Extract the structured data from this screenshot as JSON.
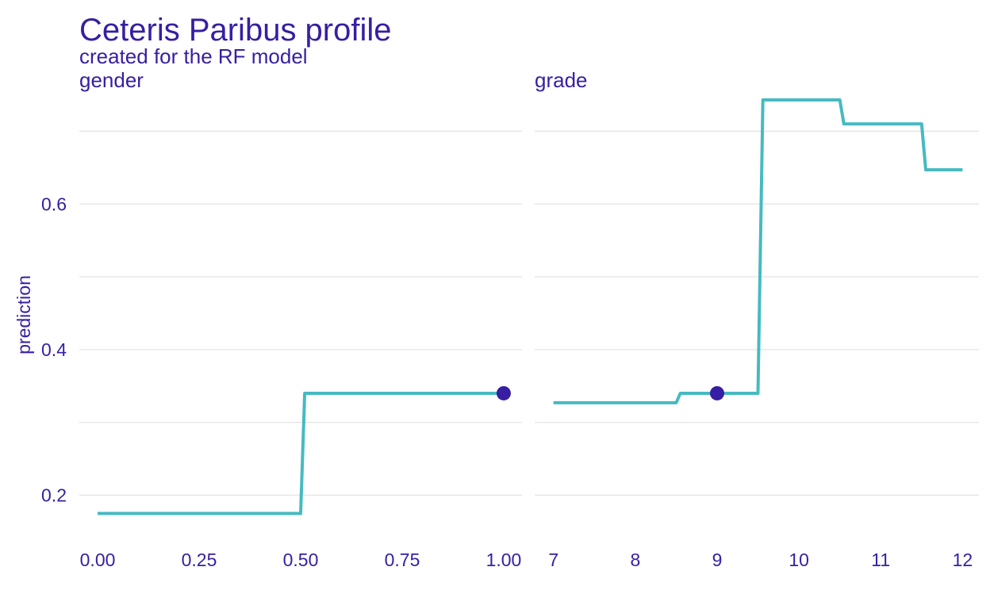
{
  "chart_data": {
    "type": "line",
    "title": "Ceteris Paribus profile",
    "subtitle": "created for the RF model",
    "ylabel": "prediction",
    "xlabel": "",
    "ylim": [
      0.145,
      0.755
    ],
    "yticks": [
      0.2,
      0.4,
      0.6
    ],
    "ytick_labels": [
      "0.2",
      "0.4",
      "0.6"
    ],
    "minor_yticks": [
      0.3,
      0.5,
      0.7
    ],
    "grid": true,
    "colors": {
      "text": "#371ea3",
      "line": "#46bac2",
      "point": "#371ea3",
      "grid": "#e6e6e6"
    },
    "panels": [
      {
        "strip": "gender",
        "xlim": [
          -0.045,
          1.045
        ],
        "xticks": [
          0.0,
          0.25,
          0.5,
          0.75,
          1.0
        ],
        "xtick_labels": [
          "0.00",
          "0.25",
          "0.50",
          "0.75",
          "1.00"
        ],
        "series": [
          {
            "x": [
              0.0,
              0.5,
              0.51,
              1.0
            ],
            "y": [
              0.175,
              0.175,
              0.34,
              0.34
            ]
          }
        ],
        "observation": {
          "x": 1.0,
          "y": 0.34
        }
      },
      {
        "strip": "grade",
        "xlim": [
          6.77,
          12.2
        ],
        "xticks": [
          7,
          8,
          9,
          10,
          11,
          12
        ],
        "xtick_labels": [
          "7",
          "8",
          "9",
          "10",
          "11",
          "12"
        ],
        "series": [
          {
            "x": [
              7.0,
              8.5,
              8.55,
              9.5,
              9.56,
              10.5,
              10.55,
              11.5,
              11.55,
              12.0
            ],
            "y": [
              0.327,
              0.327,
              0.34,
              0.34,
              0.743,
              0.743,
              0.71,
              0.71,
              0.647,
              0.647
            ]
          }
        ],
        "observation": {
          "x": 9.0,
          "y": 0.34
        }
      }
    ]
  }
}
